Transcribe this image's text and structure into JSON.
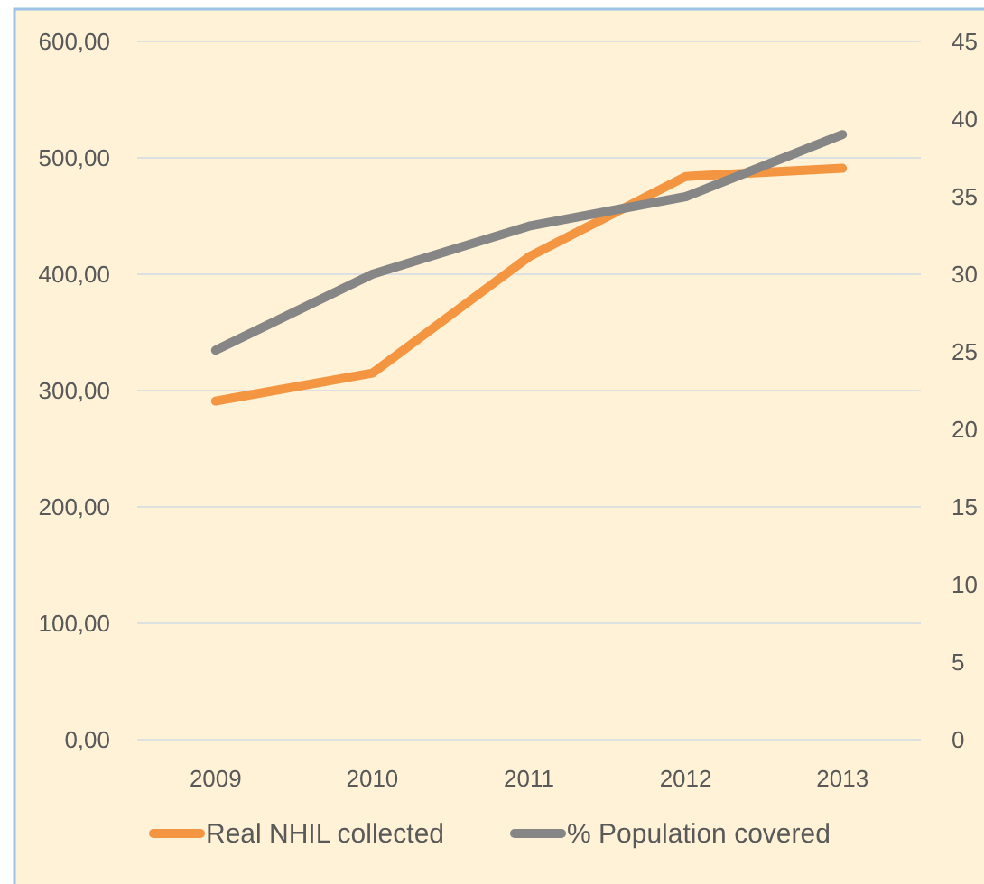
{
  "chart_data": {
    "type": "line",
    "categories": [
      "2009",
      "2010",
      "2011",
      "2012",
      "2013"
    ],
    "series": [
      {
        "name": "Real NHIL collected",
        "color": "#f39541",
        "values": [
          291,
          315,
          415,
          484,
          491
        ]
      },
      {
        "name": "% Population covered",
        "color": "#868686",
        "values": [
          25.1,
          30.0,
          33.1,
          35.0,
          39.0
        ],
        "axis": "y2"
      }
    ],
    "ylim": [
      0,
      600
    ],
    "yticks": [
      {
        "value": 0,
        "label": "0,00"
      },
      {
        "value": 100,
        "label": "100,00"
      },
      {
        "value": 200,
        "label": "200,00"
      },
      {
        "value": 300,
        "label": "300,00"
      },
      {
        "value": 400,
        "label": "400,00"
      },
      {
        "value": 500,
        "label": "500,00"
      },
      {
        "value": 600,
        "label": "600,00"
      }
    ],
    "y2lim": [
      0,
      45
    ],
    "y2ticks": [
      0,
      5,
      10,
      15,
      20,
      25,
      30,
      35,
      40,
      45
    ],
    "grid": "y",
    "legend": "bottom",
    "marker": "none",
    "line_style": "solid"
  }
}
